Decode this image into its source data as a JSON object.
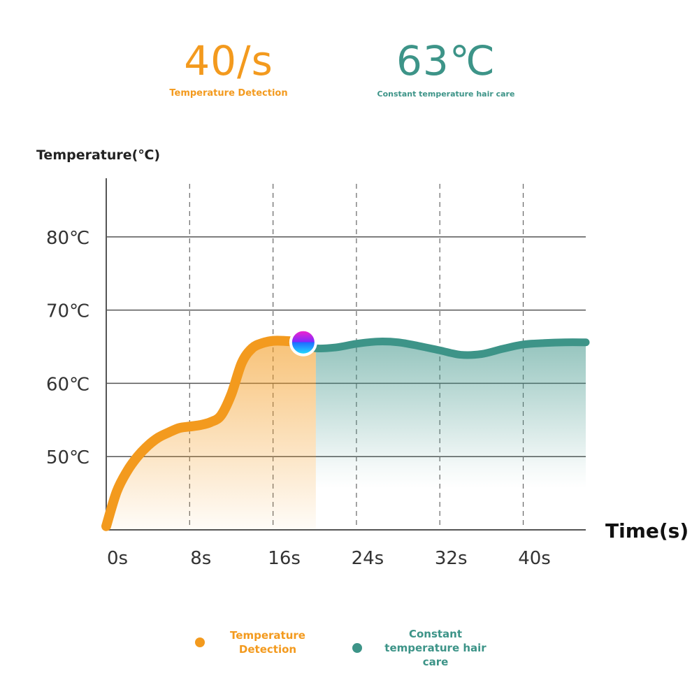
{
  "colors": {
    "orange": "#f39a1e",
    "teal": "#3d9488",
    "grid": "#444444",
    "text": "#333333"
  },
  "stats": [
    {
      "value": "40/s",
      "label": "Temperature Detection",
      "color": "#f39a1e"
    },
    {
      "value": "63℃",
      "label": "Constant temperature hair care",
      "color": "#3d9488"
    }
  ],
  "legend": [
    {
      "label": "Temperature Detection",
      "color": "#f39a1e"
    },
    {
      "label": "Constant temperature hair care",
      "color": "#3d9488"
    }
  ],
  "chart_data": {
    "type": "line",
    "ylabel": "Temperature(℃)",
    "xlabel": "Time(s)",
    "xlim": [
      0,
      46
    ],
    "ylim": [
      40,
      88
    ],
    "x_ticks": [
      {
        "value": 0,
        "label": "0s"
      },
      {
        "value": 8,
        "label": "8s"
      },
      {
        "value": 16,
        "label": "16s"
      },
      {
        "value": 24,
        "label": "24s"
      },
      {
        "value": 32,
        "label": "32s"
      },
      {
        "value": 40,
        "label": "40s"
      }
    ],
    "y_ticks": [
      {
        "value": 50,
        "label": "50℃"
      },
      {
        "value": 60,
        "label": "60℃"
      },
      {
        "value": 70,
        "label": "70℃"
      },
      {
        "value": 80,
        "label": "80℃"
      }
    ],
    "grid": {
      "horizontal": "solid",
      "vertical": "dashed"
    },
    "series": [
      {
        "name": "Temperature Detection",
        "color": "#f39a1e",
        "x": [
          0,
          1,
          2,
          3,
          4,
          5,
          6,
          7,
          8,
          9,
          10,
          11,
          12,
          13,
          14,
          15,
          16,
          17,
          18.9
        ],
        "y": [
          40.5,
          45.2,
          48,
          50,
          51.5,
          52.6,
          53.3,
          53.9,
          54.1,
          54.3,
          54.7,
          55.6,
          58.5,
          62.8,
          64.8,
          65.5,
          65.8,
          65.8,
          65.6
        ]
      },
      {
        "name": "Constant temperature hair care",
        "color": "#3d9488",
        "x": [
          18.9,
          20,
          22,
          24,
          26,
          28,
          30,
          32,
          34,
          36,
          38,
          40,
          42,
          44,
          46
        ],
        "y": [
          65.6,
          64.8,
          64.9,
          65.4,
          65.7,
          65.6,
          65.1,
          64.5,
          63.9,
          64.0,
          64.7,
          65.3,
          65.5,
          65.6,
          65.6
        ]
      }
    ],
    "marker": {
      "x": 18.9,
      "y": 65.6
    }
  }
}
